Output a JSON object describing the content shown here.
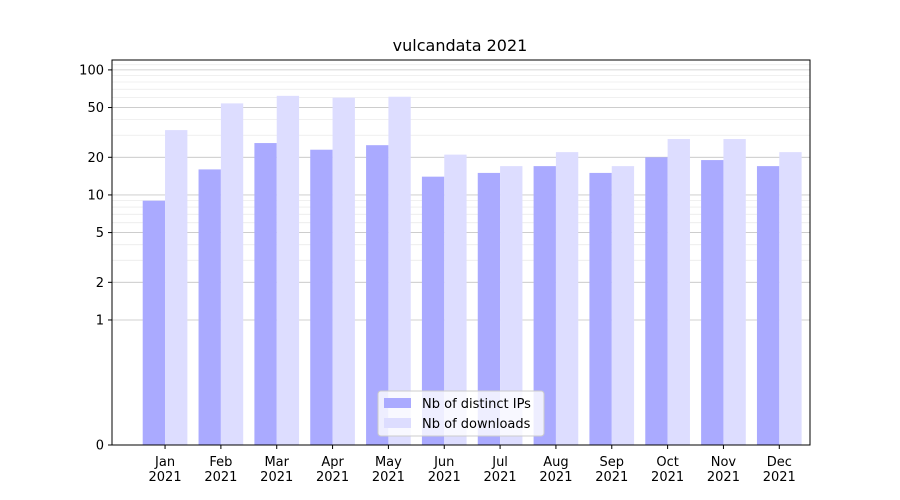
{
  "chart_data": {
    "type": "bar",
    "title": "vulcandata 2021",
    "xlabel": "",
    "ylabel": "",
    "y_scale": "symlog",
    "ylim": [
      0,
      120
    ],
    "yticks": [
      0,
      1,
      2,
      5,
      10,
      20,
      50,
      100
    ],
    "ytick_labels": [
      "0",
      "1",
      "2",
      "5",
      "10",
      "20",
      "50",
      "100"
    ],
    "grid": true,
    "legend_position": "bottom-center",
    "categories": [
      "Jan\n2021",
      "Feb\n2021",
      "Mar\n2021",
      "Apr\n2021",
      "May\n2021",
      "Jun\n2021",
      "Jul\n2021",
      "Aug\n2021",
      "Sep\n2021",
      "Oct\n2021",
      "Nov\n2021",
      "Dec\n2021"
    ],
    "series": [
      {
        "name": "Nb of distinct IPs",
        "color": "#aaaaff",
        "values": [
          9,
          16,
          26,
          23,
          25,
          14,
          15,
          17,
          15,
          20,
          19,
          17
        ]
      },
      {
        "name": "Nb of downloads",
        "color": "#ddddff",
        "values": [
          33,
          54,
          62,
          60,
          61,
          21,
          17,
          22,
          17,
          28,
          28,
          22
        ]
      }
    ]
  }
}
